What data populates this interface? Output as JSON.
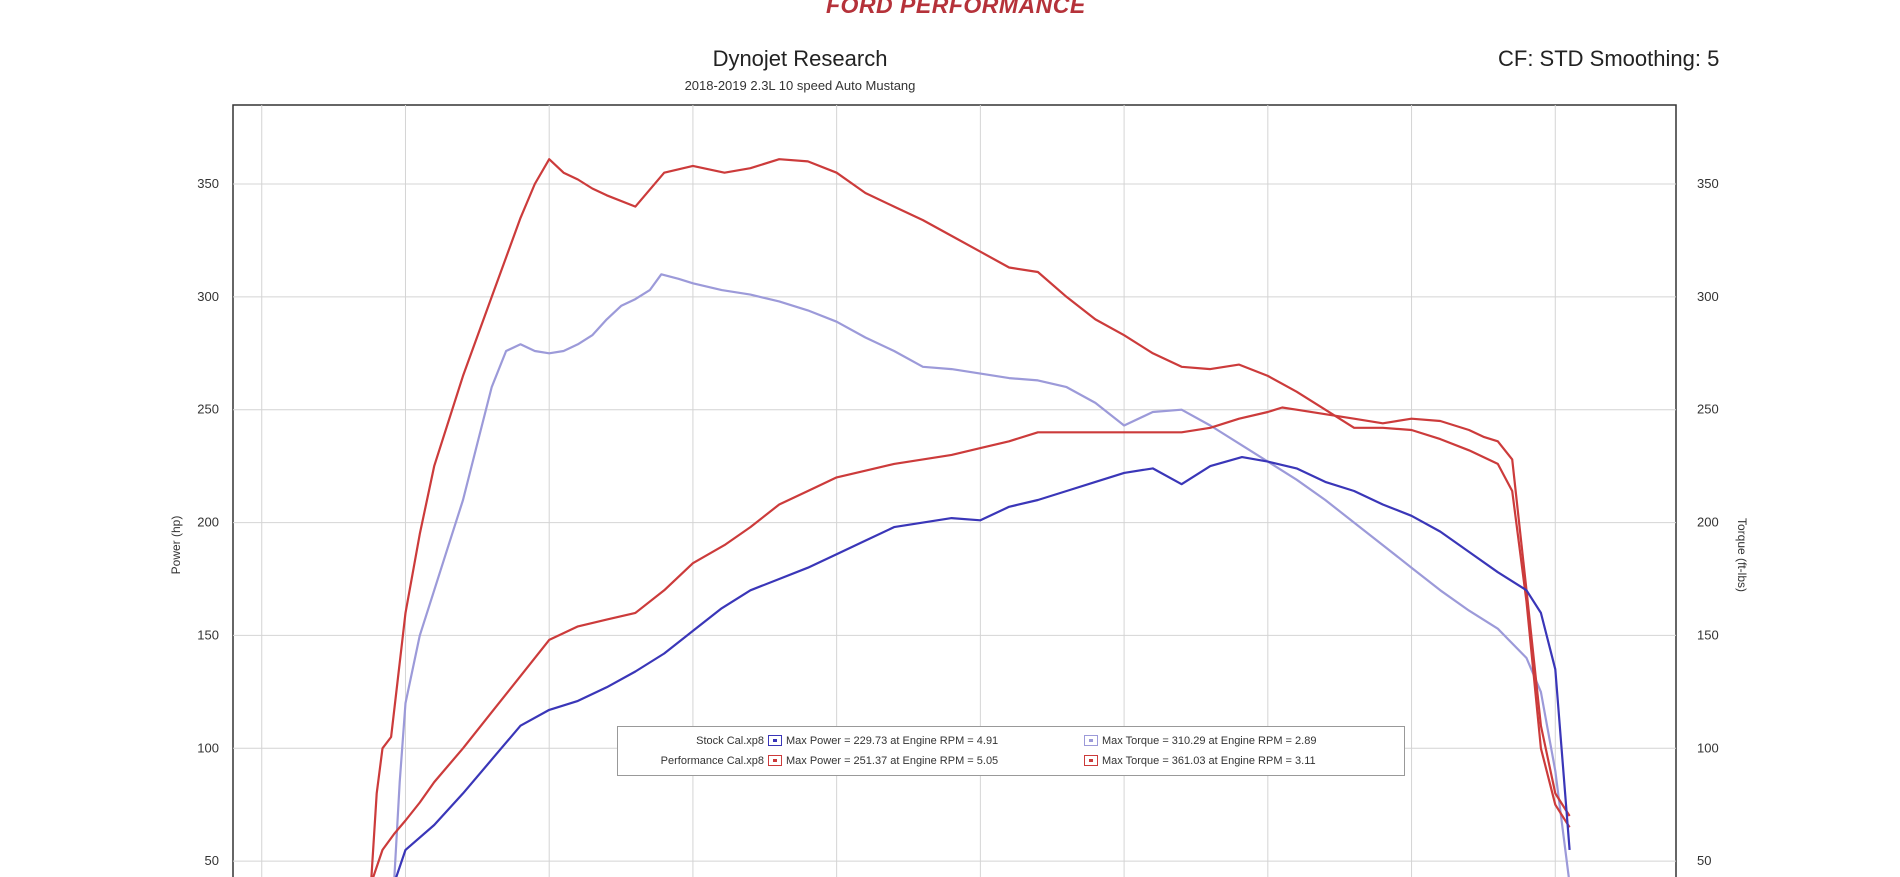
{
  "header": {
    "brand": "FORD PERFORMANCE",
    "title": "Dynojet Research",
    "subtitle": "2018-2019 2.3L 10 speed Auto Mustang",
    "cf_info": "CF: STD Smoothing: 5"
  },
  "colors": {
    "stock": "#3a36b8",
    "stock_light": "#9c9ad9",
    "performance": "#cc3b3b"
  },
  "legend": {
    "stock": {
      "file": "Stock Cal.xp8",
      "power": "Max Power = 229.73 at Engine RPM = 4.91",
      "torque": "Max Torque = 310.29 at Engine RPM = 2.89"
    },
    "performance": {
      "file": "Performance Cal.xp8",
      "power": "Max Power = 251.37 at Engine RPM = 5.05",
      "torque": "Max Torque = 361.03 at Engine RPM = 3.11"
    }
  },
  "chart_data": {
    "type": "line",
    "ylabel_left": "Power (hp)",
    "ylabel_right": "Torque (ft-lbs)",
    "ylim": [
      35,
      385
    ],
    "yticks": [
      50,
      100,
      150,
      200,
      250,
      300,
      350
    ],
    "xlim": [
      1.4,
      6.42
    ],
    "grid": true,
    "series": [
      {
        "name": "Stock Cal.xp8 - Torque",
        "color_key": "stock_light",
        "x": [
          1.96,
          1.98,
          2.0,
          2.05,
          2.1,
          2.15,
          2.2,
          2.25,
          2.3,
          2.35,
          2.4,
          2.45,
          2.5,
          2.55,
          2.6,
          2.65,
          2.7,
          2.75,
          2.8,
          2.85,
          2.89,
          2.95,
          3.0,
          3.1,
          3.2,
          3.3,
          3.4,
          3.5,
          3.6,
          3.7,
          3.8,
          3.9,
          4.0,
          4.1,
          4.2,
          4.3,
          4.4,
          4.5,
          4.6,
          4.7,
          4.8,
          4.9,
          5.0,
          5.1,
          5.2,
          5.3,
          5.4,
          5.5,
          5.6,
          5.7,
          5.8,
          5.9,
          5.95,
          6.0,
          6.05
        ],
        "values": [
          40,
          85,
          120,
          150,
          170,
          190,
          210,
          235,
          260,
          276,
          279,
          276,
          275,
          276,
          279,
          283,
          290,
          296,
          299,
          303,
          310,
          308,
          306,
          303,
          301,
          298,
          294,
          289,
          282,
          276,
          269,
          268,
          266,
          264,
          263,
          260,
          253,
          243,
          249,
          250,
          243,
          235,
          227,
          219,
          210,
          200,
          190,
          180,
          170,
          161,
          153,
          140,
          125,
          90,
          40
        ]
      },
      {
        "name": "Performance Cal.xp8 - Torque",
        "color_key": "performance",
        "x": [
          1.88,
          1.9,
          1.92,
          1.95,
          2.0,
          2.05,
          2.1,
          2.2,
          2.3,
          2.4,
          2.45,
          2.5,
          2.55,
          2.6,
          2.65,
          2.7,
          2.8,
          2.9,
          3.0,
          3.11,
          3.2,
          3.3,
          3.4,
          3.5,
          3.6,
          3.7,
          3.8,
          3.9,
          4.0,
          4.1,
          4.2,
          4.3,
          4.4,
          4.5,
          4.6,
          4.7,
          4.8,
          4.9,
          5.0,
          5.1,
          5.2,
          5.3,
          5.4,
          5.5,
          5.6,
          5.7,
          5.8,
          5.85,
          5.9,
          5.95,
          6.0,
          6.05
        ],
        "values": [
          40,
          80,
          100,
          105,
          160,
          195,
          225,
          265,
          300,
          335,
          350,
          361,
          355,
          352,
          348,
          345,
          340,
          355,
          358,
          355,
          357,
          361,
          360,
          355,
          346,
          340,
          334,
          327,
          320,
          313,
          311,
          300,
          290,
          283,
          275,
          269,
          268,
          270,
          265,
          258,
          250,
          242,
          242,
          241,
          237,
          232,
          226,
          214,
          165,
          100,
          75,
          65
        ]
      },
      {
        "name": "Performance Cal.xp8 - Power",
        "color_key": "performance",
        "x": [
          1.88,
          1.92,
          1.96,
          2.0,
          2.05,
          2.1,
          2.2,
          2.3,
          2.4,
          2.5,
          2.6,
          2.7,
          2.8,
          2.9,
          3.0,
          3.11,
          3.2,
          3.3,
          3.4,
          3.5,
          3.6,
          3.7,
          3.8,
          3.9,
          4.0,
          4.1,
          4.2,
          4.3,
          4.4,
          4.5,
          4.6,
          4.7,
          4.8,
          4.9,
          5.0,
          5.05,
          5.1,
          5.2,
          5.3,
          5.4,
          5.5,
          5.6,
          5.7,
          5.75,
          5.8,
          5.85,
          5.9,
          5.95,
          6.0,
          6.05
        ],
        "values": [
          40,
          55,
          62,
          68,
          76,
          85,
          100,
          116,
          132,
          148,
          154,
          157,
          160,
          170,
          182,
          190,
          198,
          208,
          214,
          220,
          223,
          226,
          228,
          230,
          233,
          236,
          240,
          240,
          240,
          240,
          240,
          240,
          242,
          246,
          249,
          251,
          250,
          248,
          246,
          244,
          246,
          245,
          241,
          238,
          236,
          228,
          170,
          110,
          80,
          70
        ]
      },
      {
        "name": "Stock Cal.xp8 - Power",
        "color_key": "stock",
        "x": [
          1.96,
          2.0,
          2.1,
          2.2,
          2.3,
          2.4,
          2.5,
          2.6,
          2.7,
          2.8,
          2.9,
          3.0,
          3.1,
          3.2,
          3.3,
          3.4,
          3.5,
          3.6,
          3.7,
          3.8,
          3.9,
          4.0,
          4.1,
          4.2,
          4.3,
          4.4,
          4.5,
          4.6,
          4.7,
          4.8,
          4.91,
          5.0,
          5.1,
          5.2,
          5.3,
          5.4,
          5.5,
          5.6,
          5.7,
          5.8,
          5.9,
          5.95,
          6.0,
          6.05
        ],
        "values": [
          40,
          55,
          66,
          80,
          95,
          110,
          117,
          121,
          127,
          134,
          142,
          152,
          162,
          170,
          175,
          180,
          186,
          192,
          198,
          200,
          202,
          201,
          207,
          210,
          214,
          218,
          222,
          224,
          217,
          225,
          229,
          227,
          224,
          218,
          214,
          208,
          203,
          196,
          187,
          178,
          170,
          160,
          135,
          55
        ]
      }
    ]
  }
}
